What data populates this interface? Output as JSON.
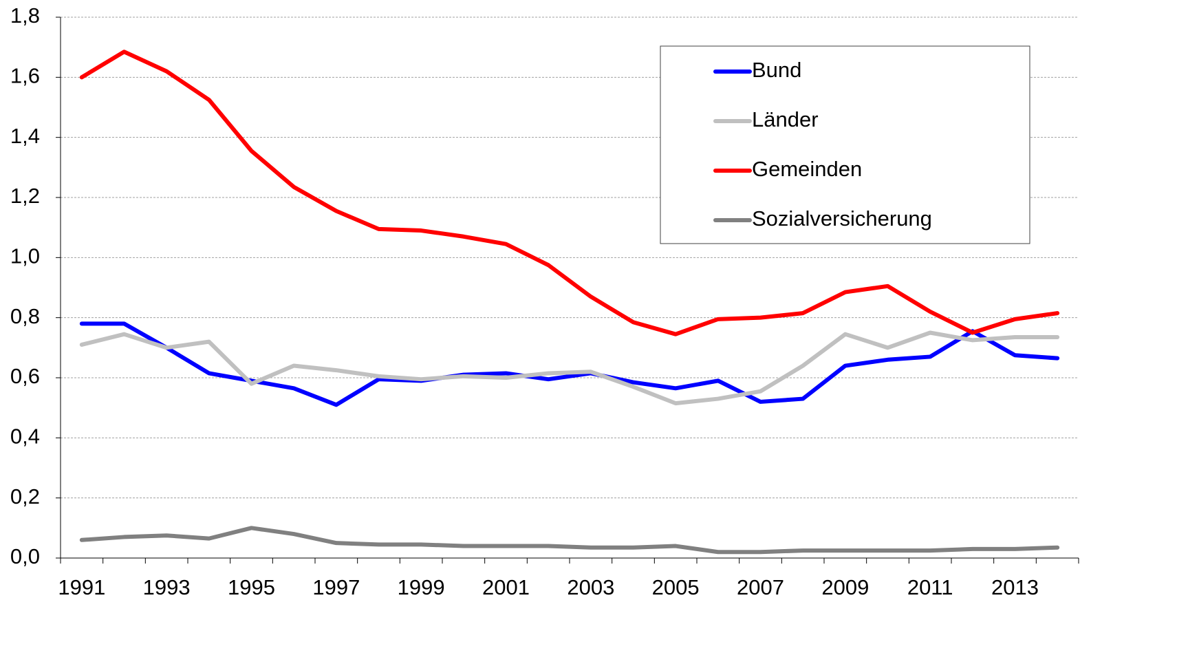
{
  "chart_data": {
    "type": "line",
    "categories": [
      "1991",
      null,
      "1993",
      null,
      "1995",
      null,
      "1997",
      null,
      "1999",
      null,
      "2001",
      null,
      "2003",
      null,
      "2005",
      null,
      "2007",
      null,
      "2009",
      null,
      "2011",
      null,
      "2013",
      null
    ],
    "series": [
      {
        "name": "Bund",
        "color": "#0000ff",
        "values": [
          0.78,
          0.78,
          0.7,
          0.615,
          0.59,
          0.565,
          0.51,
          0.595,
          0.59,
          0.61,
          0.615,
          0.595,
          0.615,
          0.585,
          0.565,
          0.59,
          0.52,
          0.53,
          0.64,
          0.66,
          0.67,
          0.755,
          0.675,
          0.665
        ]
      },
      {
        "name": "Länder",
        "color": "#c0c0c0",
        "values": [
          0.71,
          0.745,
          0.7,
          0.72,
          0.58,
          0.64,
          0.625,
          0.605,
          0.595,
          0.605,
          0.6,
          0.615,
          0.62,
          0.57,
          0.515,
          0.53,
          0.555,
          0.64,
          0.745,
          0.7,
          0.75,
          0.725,
          0.735,
          0.735
        ]
      },
      {
        "name": "Gemeinden",
        "color": "#ff0000",
        "values": [
          1.6,
          1.685,
          1.62,
          1.525,
          1.355,
          1.235,
          1.155,
          1.095,
          1.09,
          1.07,
          1.045,
          0.975,
          0.87,
          0.785,
          0.745,
          0.795,
          0.8,
          0.815,
          0.885,
          0.905,
          0.82,
          0.75,
          0.795,
          0.815
        ]
      },
      {
        "name": "Sozialversicherung",
        "color": "#808080",
        "values": [
          0.06,
          0.07,
          0.075,
          0.065,
          0.1,
          0.08,
          0.05,
          0.045,
          0.045,
          0.04,
          0.04,
          0.04,
          0.035,
          0.035,
          0.04,
          0.02,
          0.02,
          0.025,
          0.025,
          0.025,
          0.025,
          0.03,
          0.03,
          0.035
        ]
      }
    ],
    "ylim": [
      0,
      1.8
    ],
    "yticks": [
      {
        "value": 0,
        "label": "0,0"
      },
      {
        "value": 0.2,
        "label": "0,2"
      },
      {
        "value": 0.4,
        "label": "0,4"
      },
      {
        "value": 0.6,
        "label": "0,6"
      },
      {
        "value": 0.8,
        "label": "0,8"
      },
      {
        "value": 1.0,
        "label": "1,0"
      },
      {
        "value": 1.2,
        "label": "1,2"
      },
      {
        "value": 1.4,
        "label": "1,4"
      },
      {
        "value": 1.6,
        "label": "1,6"
      },
      {
        "value": 1.8,
        "label": "1,8"
      }
    ],
    "grid": true,
    "legend": "upper right"
  }
}
